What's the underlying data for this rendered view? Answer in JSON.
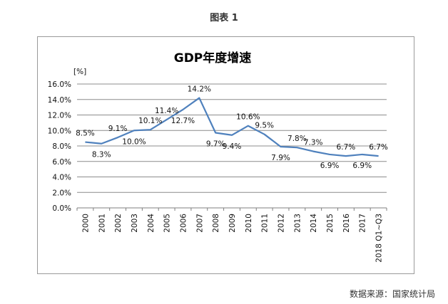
{
  "caption": "图表 1",
  "source": "数据来源：国家统计局",
  "chart_data": {
    "type": "line",
    "title": "GDP年度增速",
    "unit_label": "[%]",
    "xlabel": "",
    "ylabel": "",
    "categories": [
      "2000",
      "2001",
      "2002",
      "2003",
      "2004",
      "2005",
      "2006",
      "2007",
      "2008",
      "2009",
      "2010",
      "2011",
      "2012",
      "2013",
      "2014",
      "2015",
      "2016",
      "2017",
      "2018 Q1~Q3"
    ],
    "values": [
      8.5,
      8.3,
      9.1,
      10.0,
      10.1,
      11.4,
      12.7,
      14.2,
      9.7,
      9.4,
      10.6,
      9.5,
      7.9,
      7.8,
      7.3,
      6.9,
      6.7,
      6.9,
      6.7
    ],
    "data_labels": [
      "8.5%",
      "8.3%",
      "9.1%",
      "10.0%",
      "10.1%",
      "11.4%",
      "12.7%",
      "14.2%",
      "9.7%",
      "9.4%",
      "10.6%",
      "9.5%",
      "7.9%",
      "7.8%",
      "7.3%",
      "6.9%",
      "6.7%",
      "6.9%",
      "6.7%"
    ],
    "ylim": [
      0,
      16
    ],
    "yticks": [
      "0.0%",
      "2.0%",
      "4.0%",
      "6.0%",
      "8.0%",
      "10.0%",
      "12.0%",
      "14.0%",
      "16.0%"
    ],
    "grid": true,
    "legend": "none",
    "line_color": "#4f81bd"
  }
}
